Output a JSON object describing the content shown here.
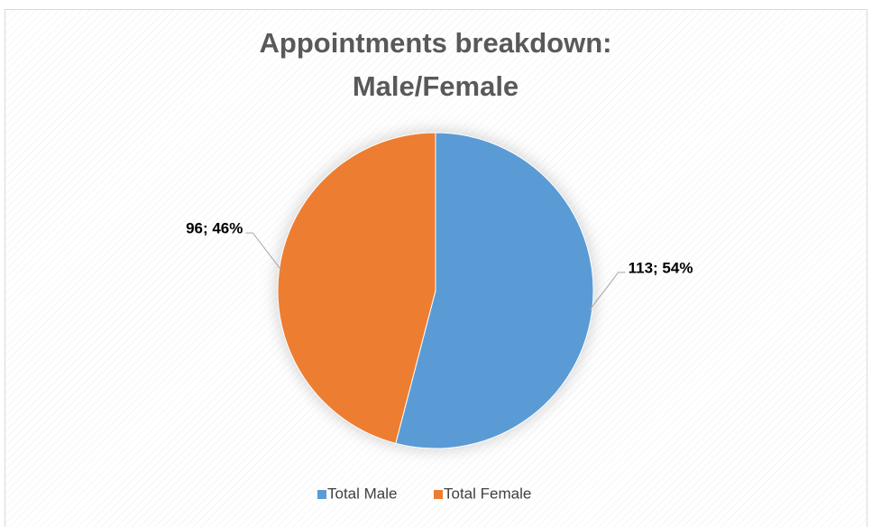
{
  "chart_data": {
    "type": "pie",
    "title": [
      "Appointments breakdown:",
      "Male/Female"
    ],
    "categories": [
      "Total Male",
      "Total Female"
    ],
    "values": [
      113,
      96
    ],
    "value_labels": [
      "113; 54%",
      "96; 46%"
    ],
    "colors": [
      "#5b9bd5",
      "#ed7d31"
    ],
    "legend": "bottom"
  }
}
